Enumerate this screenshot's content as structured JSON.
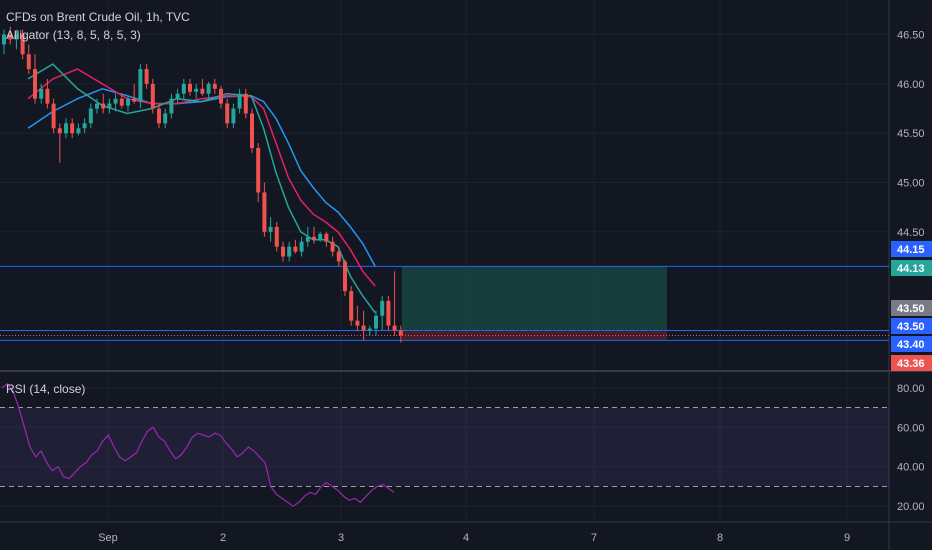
{
  "header": {
    "symbol_title": "CFDs on Brent Crude Oil, 1h, TVC",
    "indicator_label": "Alligator (13, 8, 5, 8, 5, 3)",
    "rsi_label": "RSI (14, close)"
  },
  "colors": {
    "background": "#131722",
    "grid": "#1e222d",
    "text": "#b2b5be",
    "candle_up": "#26a69a",
    "candle_down": "#ef5350",
    "jaw": "#2196f3",
    "teeth": "#e91e63",
    "lips": "#26a69a",
    "hline": "#2962ff",
    "rsi": "#9c27b0",
    "rsi_band": "#7e57c2",
    "rsi_bound": "#a0a0a0",
    "target_fill": "#17473f",
    "stop_fill": "#4a1f28",
    "badge_blue": "#2962ff",
    "badge_gray": "#787b86",
    "badge_green": "#26a69a",
    "badge_red": "#ef5350"
  },
  "chart_data": [
    {
      "type": "candlestick",
      "title": "CFDs on Brent Crude Oil, 1h, TVC",
      "interval": "1h",
      "x_tick_labels": [
        "Sep",
        "2",
        "3",
        "4",
        "7",
        "8",
        "9"
      ],
      "y_tick_labels": [
        "44.50",
        "45.00",
        "45.50",
        "46.00",
        "46.50"
      ],
      "ylim": [
        43.1,
        46.85
      ],
      "grid": true,
      "candles": [
        {
          "o": 46.4,
          "h": 46.55,
          "l": 46.3,
          "c": 46.5
        },
        {
          "o": 46.5,
          "h": 46.58,
          "l": 46.4,
          "c": 46.45
        },
        {
          "o": 46.45,
          "h": 46.55,
          "l": 46.35,
          "c": 46.5
        },
        {
          "o": 46.5,
          "h": 46.55,
          "l": 46.25,
          "c": 46.3
        },
        {
          "o": 46.3,
          "h": 46.4,
          "l": 46.1,
          "c": 46.15
        },
        {
          "o": 46.15,
          "h": 46.3,
          "l": 45.8,
          "c": 45.85
        },
        {
          "o": 45.85,
          "h": 46.0,
          "l": 45.8,
          "c": 45.95
        },
        {
          "o": 45.95,
          "h": 46.05,
          "l": 45.75,
          "c": 45.8
        },
        {
          "o": 45.8,
          "h": 45.85,
          "l": 45.5,
          "c": 45.55
        },
        {
          "o": 45.55,
          "h": 45.6,
          "l": 45.2,
          "c": 45.5
        },
        {
          "o": 45.5,
          "h": 45.65,
          "l": 45.45,
          "c": 45.6
        },
        {
          "o": 45.6,
          "h": 45.65,
          "l": 45.45,
          "c": 45.5
        },
        {
          "o": 45.5,
          "h": 45.6,
          "l": 45.48,
          "c": 45.55
        },
        {
          "o": 45.55,
          "h": 45.65,
          "l": 45.5,
          "c": 45.6
        },
        {
          "o": 45.6,
          "h": 45.8,
          "l": 45.55,
          "c": 45.75
        },
        {
          "o": 45.75,
          "h": 45.85,
          "l": 45.7,
          "c": 45.8
        },
        {
          "o": 45.8,
          "h": 45.9,
          "l": 45.7,
          "c": 45.75
        },
        {
          "o": 45.75,
          "h": 45.85,
          "l": 45.7,
          "c": 45.8
        },
        {
          "o": 45.8,
          "h": 45.9,
          "l": 45.72,
          "c": 45.85
        },
        {
          "o": 45.85,
          "h": 45.9,
          "l": 45.75,
          "c": 45.78
        },
        {
          "o": 45.78,
          "h": 45.88,
          "l": 45.72,
          "c": 45.85
        },
        {
          "o": 45.85,
          "h": 46.0,
          "l": 45.8,
          "c": 45.82
        },
        {
          "o": 45.82,
          "h": 46.2,
          "l": 45.75,
          "c": 46.15
        },
        {
          "o": 46.15,
          "h": 46.2,
          "l": 45.95,
          "c": 46.0
        },
        {
          "o": 46.0,
          "h": 46.05,
          "l": 45.7,
          "c": 45.75
        },
        {
          "o": 45.75,
          "h": 45.8,
          "l": 45.55,
          "c": 45.6
        },
        {
          "o": 45.6,
          "h": 45.75,
          "l": 45.55,
          "c": 45.7
        },
        {
          "o": 45.7,
          "h": 45.9,
          "l": 45.65,
          "c": 45.85
        },
        {
          "o": 45.85,
          "h": 45.95,
          "l": 45.8,
          "c": 45.9
        },
        {
          "o": 45.9,
          "h": 46.05,
          "l": 45.85,
          "c": 46.0
        },
        {
          "o": 46.0,
          "h": 46.05,
          "l": 45.88,
          "c": 45.92
        },
        {
          "o": 45.92,
          "h": 46.0,
          "l": 45.85,
          "c": 45.95
        },
        {
          "o": 45.95,
          "h": 46.05,
          "l": 45.88,
          "c": 45.9
        },
        {
          "o": 45.9,
          "h": 46.02,
          "l": 45.85,
          "c": 46.0
        },
        {
          "o": 46.0,
          "h": 46.05,
          "l": 45.9,
          "c": 45.95
        },
        {
          "o": 45.95,
          "h": 45.98,
          "l": 45.75,
          "c": 45.8
        },
        {
          "o": 45.8,
          "h": 45.85,
          "l": 45.55,
          "c": 45.6
        },
        {
          "o": 45.6,
          "h": 45.8,
          "l": 45.55,
          "c": 45.75
        },
        {
          "o": 45.75,
          "h": 45.95,
          "l": 45.7,
          "c": 45.9
        },
        {
          "o": 45.9,
          "h": 45.95,
          "l": 45.65,
          "c": 45.7
        },
        {
          "o": 45.7,
          "h": 45.75,
          "l": 45.3,
          "c": 45.35
        },
        {
          "o": 45.35,
          "h": 45.4,
          "l": 44.8,
          "c": 44.9
        },
        {
          "o": 44.9,
          "h": 45.0,
          "l": 44.45,
          "c": 44.5
        },
        {
          "o": 44.5,
          "h": 44.65,
          "l": 44.4,
          "c": 44.55
        },
        {
          "o": 44.55,
          "h": 44.6,
          "l": 44.3,
          "c": 44.35
        },
        {
          "o": 44.35,
          "h": 44.4,
          "l": 44.2,
          "c": 44.25
        },
        {
          "o": 44.25,
          "h": 44.4,
          "l": 44.2,
          "c": 44.35
        },
        {
          "o": 44.35,
          "h": 44.42,
          "l": 44.28,
          "c": 44.3
        },
        {
          "o": 44.3,
          "h": 44.45,
          "l": 44.25,
          "c": 44.4
        },
        {
          "o": 44.4,
          "h": 44.55,
          "l": 44.35,
          "c": 44.45
        },
        {
          "o": 44.45,
          "h": 44.55,
          "l": 44.38,
          "c": 44.42
        },
        {
          "o": 44.42,
          "h": 44.5,
          "l": 44.4,
          "c": 44.48
        },
        {
          "o": 44.48,
          "h": 44.5,
          "l": 44.35,
          "c": 44.4
        },
        {
          "o": 44.4,
          "h": 44.45,
          "l": 44.25,
          "c": 44.3
        },
        {
          "o": 44.3,
          "h": 44.35,
          "l": 44.15,
          "c": 44.2
        },
        {
          "o": 44.2,
          "h": 44.22,
          "l": 43.85,
          "c": 43.9
        },
        {
          "o": 43.9,
          "h": 43.95,
          "l": 43.55,
          "c": 43.6
        },
        {
          "o": 43.6,
          "h": 43.75,
          "l": 43.5,
          "c": 43.55
        },
        {
          "o": 43.55,
          "h": 43.7,
          "l": 43.4,
          "c": 43.5
        },
        {
          "o": 43.5,
          "h": 43.55,
          "l": 43.45,
          "c": 43.52
        },
        {
          "o": 43.52,
          "h": 43.7,
          "l": 43.45,
          "c": 43.65
        },
        {
          "o": 43.65,
          "h": 43.85,
          "l": 43.5,
          "c": 43.8
        },
        {
          "o": 43.8,
          "h": 43.85,
          "l": 43.5,
          "c": 43.55
        },
        {
          "o": 43.55,
          "h": 44.1,
          "l": 43.45,
          "c": 43.5
        },
        {
          "o": 43.5,
          "h": 43.55,
          "l": 43.38,
          "c": 43.45
        }
      ],
      "alligator": {
        "jaw": {
          "name": "",
          "values": [
            [
              0,
              45.55
            ],
            [
              4,
              45.72
            ],
            [
              8,
              45.85
            ],
            [
              12,
              45.95
            ],
            [
              16,
              45.88
            ],
            [
              20,
              45.8
            ],
            [
              24,
              45.8
            ],
            [
              28,
              45.82
            ],
            [
              32,
              45.87
            ],
            [
              36,
              45.88
            ],
            [
              38,
              45.82
            ],
            [
              40,
              45.65
            ],
            [
              42,
              45.4
            ],
            [
              44,
              45.12
            ],
            [
              46,
              44.95
            ],
            [
              48,
              44.8
            ],
            [
              50,
              44.7
            ],
            [
              52,
              44.55
            ],
            [
              54,
              44.38
            ],
            [
              56,
              44.15
            ]
          ]
        },
        "teeth": {
          "name": "",
          "values": [
            [
              0,
              45.85
            ],
            [
              4,
              46.05
            ],
            [
              8,
              46.15
            ],
            [
              12,
              46.0
            ],
            [
              16,
              45.85
            ],
            [
              20,
              45.8
            ],
            [
              24,
              45.8
            ],
            [
              28,
              45.85
            ],
            [
              32,
              45.88
            ],
            [
              36,
              45.87
            ],
            [
              38,
              45.75
            ],
            [
              40,
              45.4
            ],
            [
              42,
              45.05
            ],
            [
              44,
              44.82
            ],
            [
              46,
              44.68
            ],
            [
              48,
              44.6
            ],
            [
              50,
              44.5
            ],
            [
              52,
              44.32
            ],
            [
              54,
              44.1
            ],
            [
              56,
              43.95
            ]
          ]
        },
        "lips": {
          "name": "",
          "values": [
            [
              0,
              46.05
            ],
            [
              4,
              46.2
            ],
            [
              8,
              45.95
            ],
            [
              12,
              45.78
            ],
            [
              16,
              45.7
            ],
            [
              20,
              45.75
            ],
            [
              24,
              45.85
            ],
            [
              28,
              45.82
            ],
            [
              32,
              45.9
            ],
            [
              36,
              45.88
            ],
            [
              38,
              45.55
            ],
            [
              40,
              45.1
            ],
            [
              42,
              44.75
            ],
            [
              44,
              44.5
            ],
            [
              46,
              44.42
            ],
            [
              48,
              44.42
            ],
            [
              50,
              44.35
            ],
            [
              52,
              44.05
            ],
            [
              54,
              43.85
            ],
            [
              56,
              43.68
            ]
          ]
        }
      },
      "horizontal_levels": [
        44.15,
        43.5,
        43.4
      ],
      "price_badges": [
        "44.15",
        "44.13",
        "43.50",
        "43.50",
        "43.40",
        "43.36"
      ],
      "long_position": {
        "entry": 43.5,
        "target": 44.15,
        "stop": 43.4
      }
    },
    {
      "type": "line",
      "title": "RSI (14, close)",
      "y_tick_labels": [
        "20.00",
        "40.00",
        "60.00",
        "80.00"
      ],
      "ylim": [
        12,
        88
      ],
      "bands": [
        30,
        70
      ],
      "values": [
        80,
        82,
        78,
        70,
        60,
        50,
        45,
        48,
        42,
        38,
        40,
        35,
        34,
        37,
        40,
        42,
        46,
        48,
        53,
        56,
        50,
        45,
        43,
        45,
        47,
        53,
        58,
        60,
        55,
        53,
        48,
        44,
        46,
        50,
        55,
        57,
        56,
        55,
        57,
        56,
        52,
        49,
        45,
        47,
        50,
        48,
        45,
        42,
        30,
        26,
        24,
        22,
        20,
        22,
        25,
        27,
        26,
        30,
        32,
        30,
        28,
        25,
        23,
        24,
        22,
        25,
        28,
        30,
        31,
        29,
        27
      ]
    }
  ]
}
